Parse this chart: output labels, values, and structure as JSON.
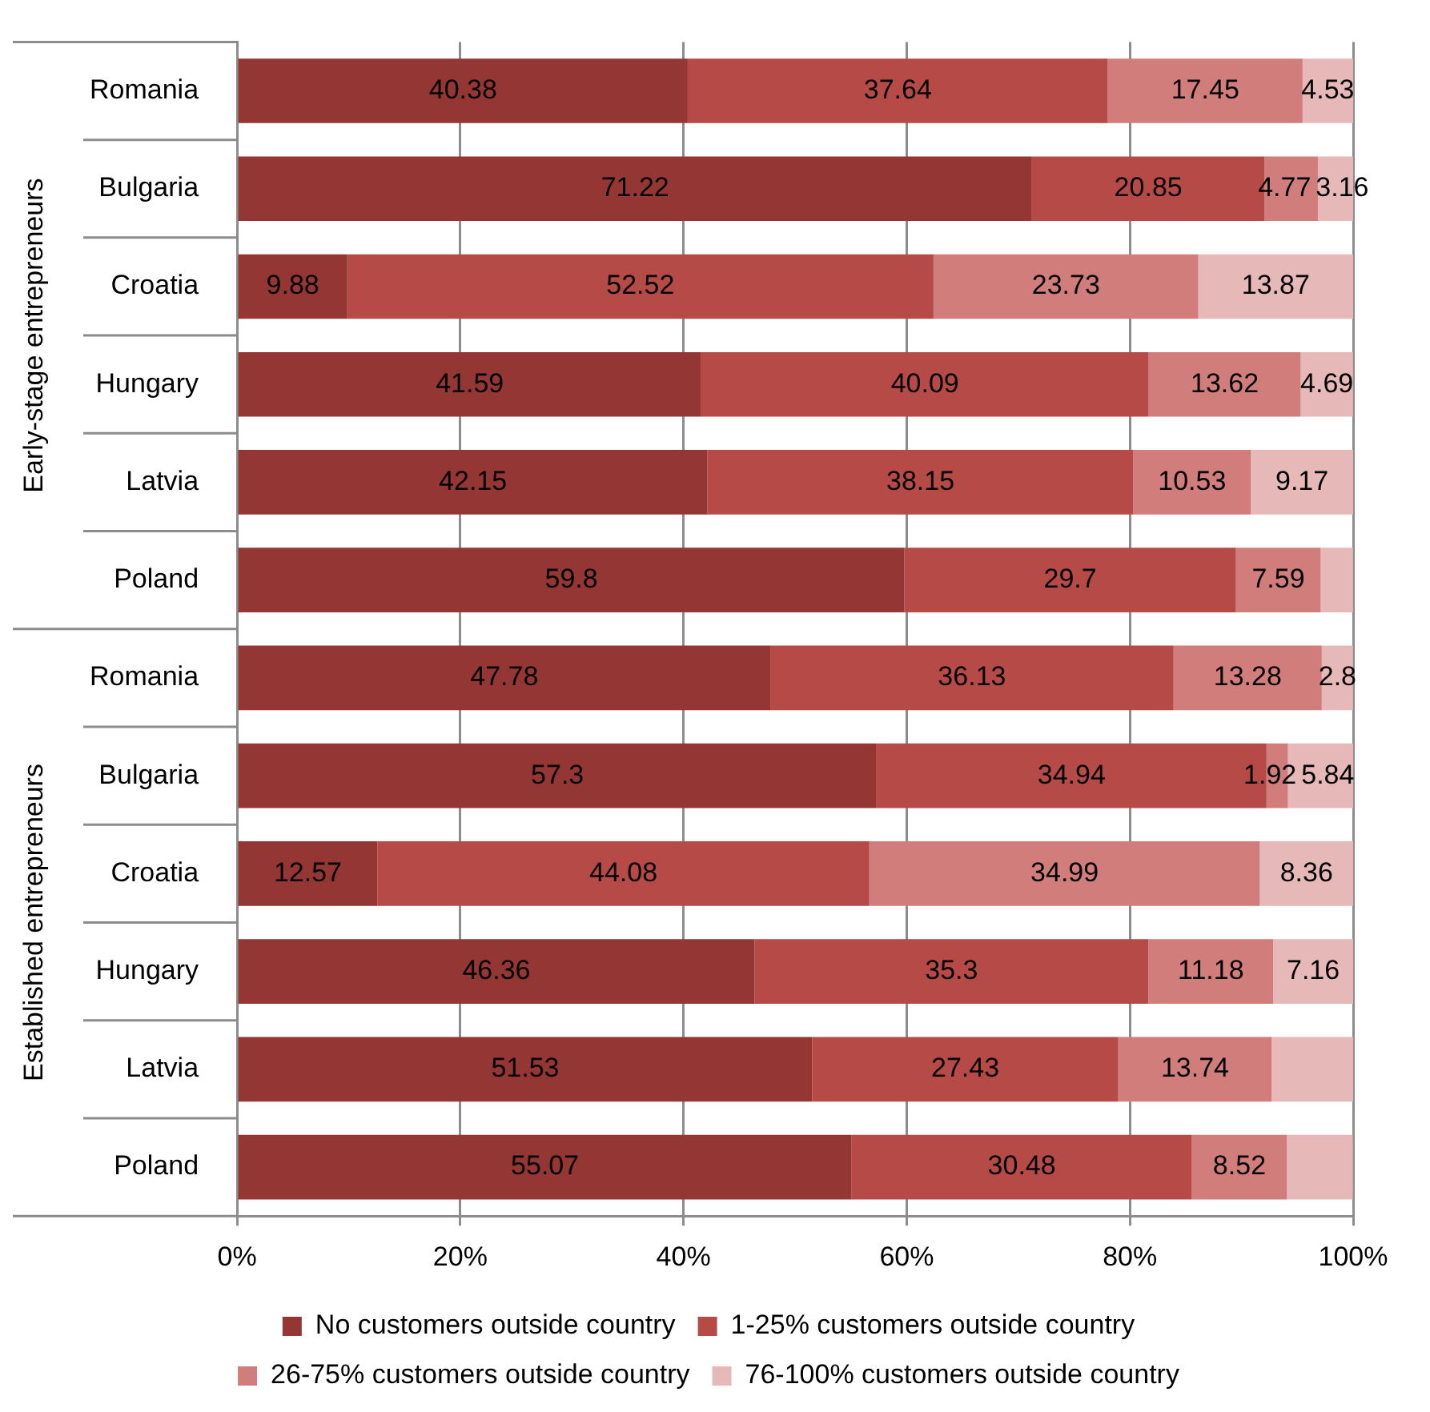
{
  "chart_data": {
    "type": "bar",
    "orientation": "horizontal",
    "stacked": true,
    "categories": [
      "Romania",
      "Bulgaria",
      "Croatia",
      "Hungary",
      "Latvia",
      "Poland",
      "Romania",
      "Bulgaria",
      "Croatia",
      "Hungary",
      "Latvia",
      "Poland"
    ],
    "series": [
      {
        "name": "No customers outside country",
        "color": "#943634",
        "values": [
          40.38,
          71.22,
          9.88,
          41.59,
          42.15,
          59.8,
          47.78,
          57.3,
          12.57,
          46.36,
          51.53,
          55.07
        ],
        "value_labels": [
          "40.38",
          "71.22",
          "9.88",
          "41.59",
          "42.15",
          "59.8",
          "47.78",
          "57.3",
          "12.57",
          "46.36",
          "51.53",
          "55.07"
        ]
      },
      {
        "name": "1-25% customers outside country",
        "color": "#b64a47",
        "values": [
          37.64,
          20.85,
          52.52,
          40.09,
          38.15,
          29.7,
          36.13,
          34.94,
          44.08,
          35.3,
          27.43,
          30.48
        ],
        "value_labels": [
          "37.64",
          "20.85",
          "52.52",
          "40.09",
          "38.15",
          "29.7",
          "36.13",
          "34.94",
          "44.08",
          "35.3",
          "27.43",
          "30.48"
        ]
      },
      {
        "name": "26-75% customers outside country",
        "color": "#d07d7b",
        "values": [
          17.45,
          4.77,
          23.73,
          13.62,
          10.53,
          7.59,
          13.28,
          1.92,
          34.99,
          11.18,
          13.74,
          8.52
        ],
        "value_labels": [
          "17.45",
          "4.77",
          "23.73",
          "13.62",
          "10.53",
          "7.59",
          "13.28",
          "1.92",
          "34.99",
          "11.18",
          "13.74",
          "8.52"
        ]
      },
      {
        "name": "76-100% customers outside country",
        "color": "#e6b9b8",
        "values": [
          4.53,
          3.16,
          13.87,
          4.69,
          9.17,
          2.9,
          2.8,
          5.84,
          8.36,
          7.16,
          7.3,
          5.9
        ],
        "value_labels": [
          "4.53",
          "3.16",
          "13.87",
          "4.69",
          "9.17",
          null,
          "2.8",
          "5.84",
          "8.36",
          "7.16",
          null,
          null
        ]
      }
    ],
    "xlim": [
      0,
      100
    ],
    "xticks": [
      {
        "value": 0,
        "label": "0%"
      },
      {
        "value": 20,
        "label": "20%"
      },
      {
        "value": 40,
        "label": "40%"
      },
      {
        "value": 60,
        "label": "60%"
      },
      {
        "value": 80,
        "label": "80%"
      },
      {
        "value": 100,
        "label": "100%"
      }
    ],
    "annotations": [
      "Early-stage entrepreneurs",
      "Established entrepreneurs"
    ],
    "grid": "x",
    "legend": "bottom"
  }
}
